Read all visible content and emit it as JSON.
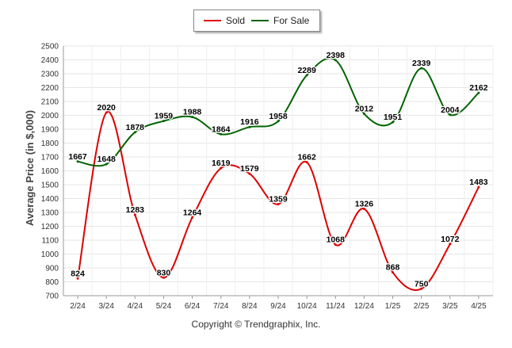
{
  "legend": {
    "sold_label": "Sold",
    "forsale_label": "For Sale"
  },
  "footer": "Copyright © Trendgraphix, Inc.",
  "chart_data": {
    "type": "line",
    "title": "",
    "xlabel": "",
    "ylabel": "Average Price (in $,000)",
    "ylim": [
      700,
      2500
    ],
    "ytick_step": 100,
    "grid": true,
    "legend_position": "top-center",
    "categories": [
      "2/24",
      "3/24",
      "4/24",
      "5/24",
      "6/24",
      "7/24",
      "8/24",
      "9/24",
      "10/24",
      "11/24",
      "12/24",
      "1/25",
      "2/25",
      "3/25",
      "4/25"
    ],
    "series": [
      {
        "name": "Sold",
        "color": "#dd0000",
        "values": [
          824,
          2020,
          1283,
          830,
          1264,
          1619,
          1579,
          1359,
          1662,
          1068,
          1326,
          868,
          750,
          1072,
          1483
        ]
      },
      {
        "name": "For Sale",
        "color": "#006400",
        "values": [
          1667,
          1648,
          1878,
          1959,
          1988,
          1864,
          1916,
          1958,
          2289,
          2398,
          2012,
          1951,
          2339,
          2004,
          2162
        ]
      }
    ]
  }
}
